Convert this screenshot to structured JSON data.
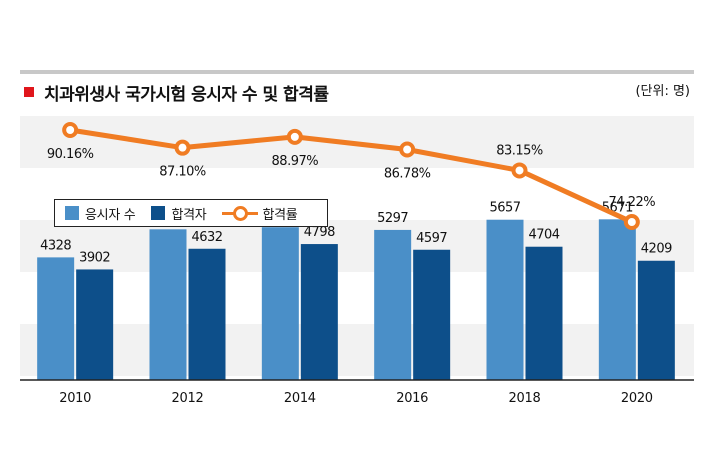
{
  "header": {
    "title": "치과위생사 국가시험 응시자 수 및 합격률",
    "unit": "(단위: 명)"
  },
  "legend": {
    "applicants": "응시자 수",
    "passers": "합격자",
    "pass_rate": "합격률"
  },
  "colors": {
    "applicants": "#4a8fc8",
    "passers": "#0d4f8a",
    "pass_rate": "#f07c23",
    "accent": "#e0161b"
  },
  "chart_data": {
    "type": "bar",
    "categories": [
      "2010",
      "2012",
      "2014",
      "2016",
      "2018",
      "2020"
    ],
    "series": [
      {
        "name": "응시자 수",
        "values": [
          4328,
          5318,
          5393,
          5297,
          5657,
          5671
        ]
      },
      {
        "name": "합격자",
        "values": [
          3902,
          4632,
          4798,
          4597,
          4704,
          4209
        ]
      },
      {
        "name": "합격률",
        "type": "line",
        "values": [
          90.16,
          87.1,
          88.97,
          86.78,
          83.15,
          74.22
        ],
        "labels": [
          "90.16%",
          "87.10%",
          "88.97%",
          "86.78%",
          "83.15%",
          "74.22%"
        ]
      }
    ],
    "grid": true,
    "legend_position": "middle-left"
  }
}
